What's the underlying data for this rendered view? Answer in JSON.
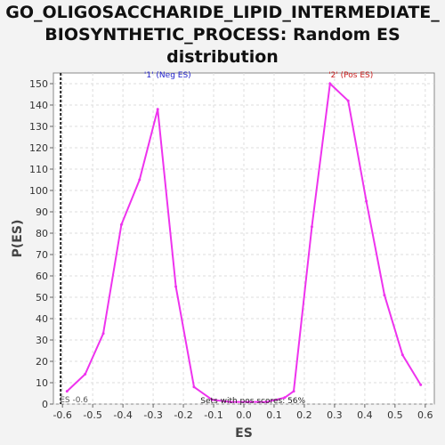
{
  "chart_data": {
    "type": "line",
    "title_lines": [
      "GO_OLIGOSACCHARIDE_LIPID_INTERMEDIATE_",
      "BIOSYNTHETIC_PROCESS: Random ES",
      "distribution"
    ],
    "xlabel": "ES",
    "ylabel": "P(ES)",
    "xlim": [
      -0.63,
      0.63
    ],
    "ylim": [
      0,
      155
    ],
    "xticks": [
      "-0.6",
      "-0.5",
      "-0.4",
      "-0.3",
      "-0.2",
      "-0.1",
      "0.0",
      "0.1",
      "0.2",
      "0.3",
      "0.4",
      "0.5",
      "0.6"
    ],
    "yticks": [
      "0",
      "10",
      "20",
      "30",
      "40",
      "50",
      "60",
      "70",
      "80",
      "90",
      "100",
      "110",
      "120",
      "130",
      "140",
      "150"
    ],
    "grid": true,
    "series_color": "#ee33ee",
    "series": [
      {
        "x": [
          -0.585,
          -0.525,
          -0.465,
          -0.405,
          -0.345,
          -0.285,
          -0.225,
          -0.165,
          -0.105,
          -0.045,
          0.015,
          0.075,
          0.135,
          0.165,
          0.225,
          0.285,
          0.345,
          0.405,
          0.465,
          0.525,
          0.585
        ],
        "y": [
          6,
          14,
          33,
          84,
          105,
          138,
          55,
          8,
          2,
          1,
          1,
          1,
          3,
          6,
          83,
          150,
          142,
          95,
          51,
          23,
          9
        ]
      }
    ],
    "annotations": [
      {
        "text": "'1' (Neg ES)",
        "x": -0.33,
        "y": 153,
        "color": "#2222cc"
      },
      {
        "text": "'2' (Pos ES)",
        "x": 0.28,
        "y": 153,
        "color": "#cc2222"
      }
    ],
    "marker_line": {
      "x": -0.6,
      "label": "ES -0.6"
    },
    "footer_text": "Sets with pos scores: 56%"
  }
}
